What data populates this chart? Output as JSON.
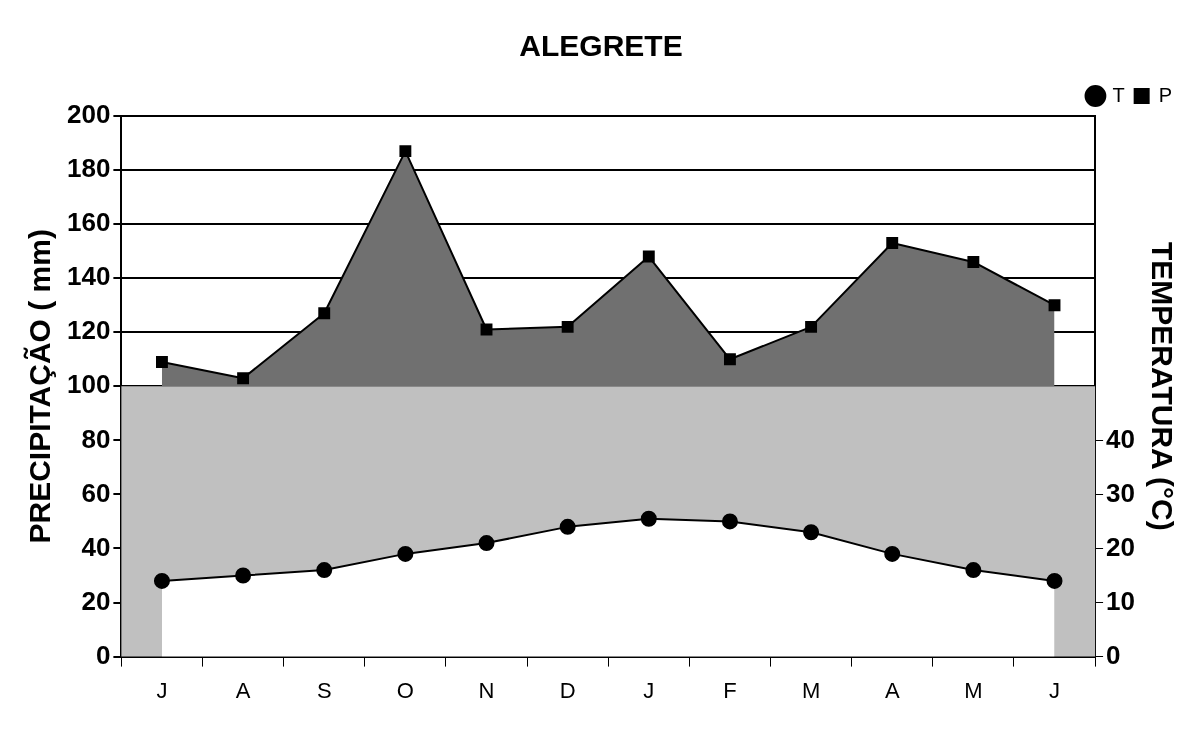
{
  "chart_data": {
    "type": "area",
    "title": "ALEGRETE",
    "ylabel": "PRECIPITAÇÃO ( mm)",
    "y2label": "TEMPERATURA (°C)",
    "categories": [
      "J",
      "A",
      "S",
      "O",
      "N",
      "D",
      "J",
      "F",
      "M",
      "A",
      "M",
      "J"
    ],
    "series": [
      {
        "name": "T",
        "type": "area",
        "axis": "y2",
        "color": "#ffffff",
        "marker": "circle",
        "values": [
          14,
          15,
          16,
          19,
          21,
          24,
          25.5,
          25,
          23,
          19,
          16,
          14
        ]
      },
      {
        "name": "P",
        "color": "#707070",
        "marker": "square",
        "values": [
          109,
          103,
          127,
          187,
          121,
          122,
          148,
          110,
          122,
          153,
          146,
          130
        ]
      }
    ],
    "ylim": [
      0,
      200
    ],
    "yticks": [
      0,
      20,
      40,
      60,
      80,
      100,
      120,
      140,
      160,
      180,
      200
    ],
    "y2lim": [
      0,
      100
    ],
    "y2ticks": [
      0,
      10,
      20,
      30,
      40
    ],
    "bands": [
      {
        "axis": "y",
        "from": 0,
        "to": 100,
        "color": "#c0c0c0"
      }
    ],
    "grid": "y",
    "legend": "top right"
  }
}
